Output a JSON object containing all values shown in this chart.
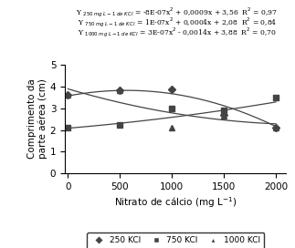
{
  "x_data": [
    0,
    500,
    1000,
    1500,
    2000
  ],
  "y_250": [
    3.6,
    3.8,
    3.85,
    2.7,
    2.1
  ],
  "y_750": [
    2.1,
    2.25,
    3.0,
    2.9,
    3.5
  ],
  "y_1000": [
    3.6,
    3.8,
    2.1,
    2.65,
    2.1
  ],
  "p250": [
    -8e-07,
    0.0009,
    3.56
  ],
  "p750": [
    1e-07,
    0.0004,
    2.08
  ],
  "p1000": [
    3e-07,
    -0.0014,
    3.88
  ],
  "xlabel": "Nitrato de cálcio (mg L$^{-1}$)",
  "ylabel": "Comprimento da\nparte aérea (cm)",
  "xlim": [
    -30,
    2100
  ],
  "ylim": [
    0,
    5
  ],
  "yticks": [
    0,
    1,
    2,
    3,
    4,
    5
  ],
  "xticks": [
    0,
    500,
    1000,
    1500,
    2000
  ],
  "color": "#444444",
  "marker_250": "D",
  "marker_750": "s",
  "marker_1000": "^",
  "markersize": 4.5,
  "linewidth": 0.9
}
